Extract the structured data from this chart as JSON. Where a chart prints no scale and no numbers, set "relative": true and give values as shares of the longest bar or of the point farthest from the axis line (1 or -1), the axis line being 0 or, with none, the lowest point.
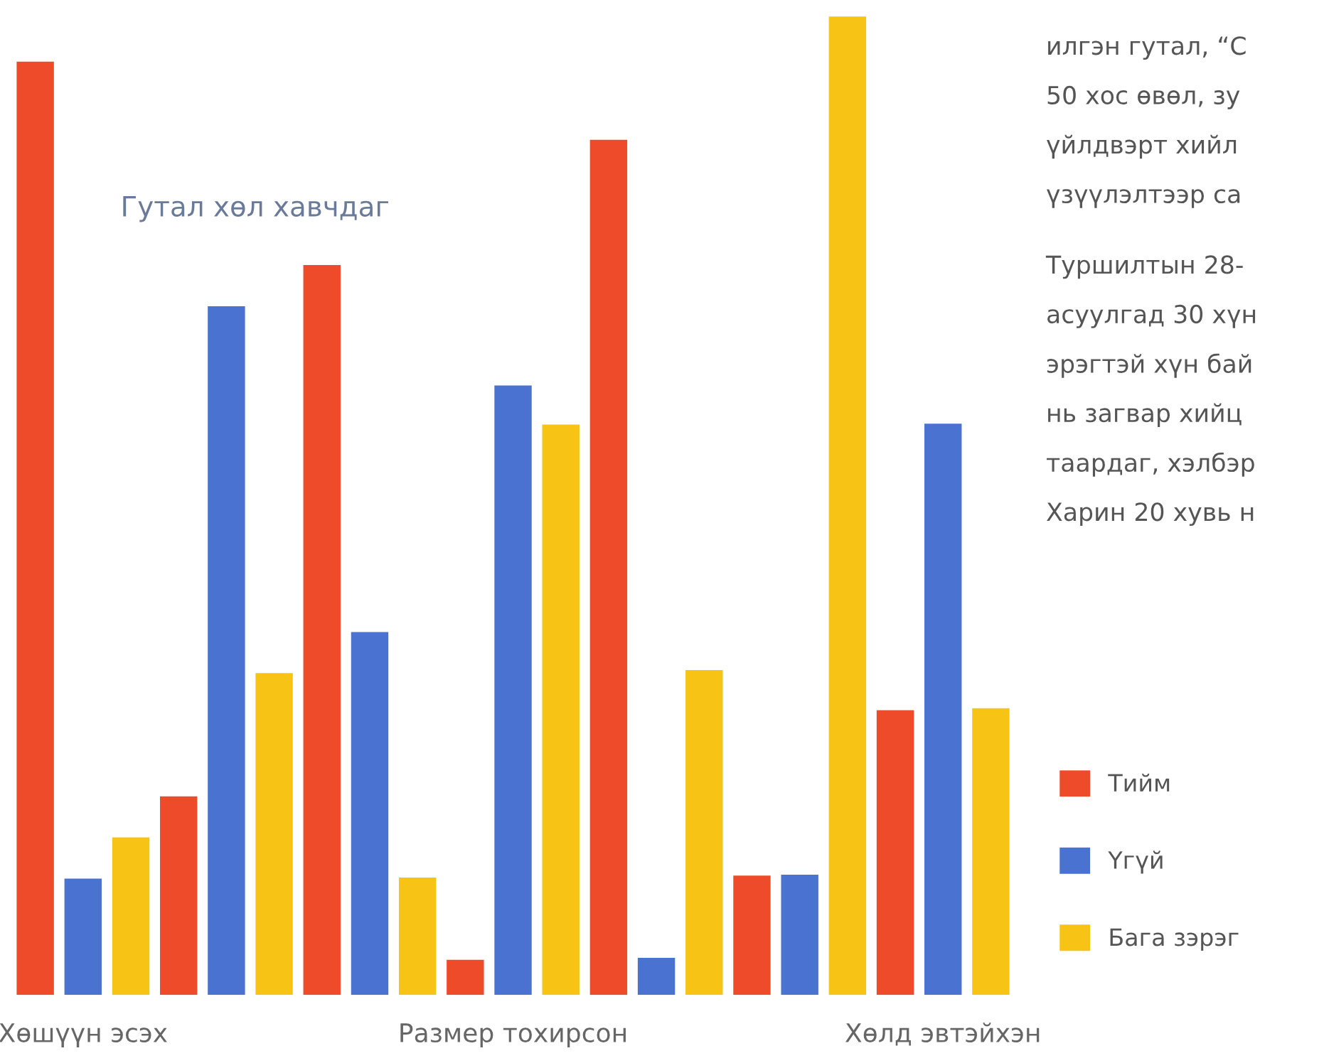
{
  "chart_data": {
    "type": "bar",
    "relative": true,
    "categories": [
      "Хөшүүн эсэх",
      null,
      null,
      "Размер тохирсон",
      null,
      null,
      "Хөлд эвтэйхэн"
    ],
    "series": [
      {
        "name": "Тийм",
        "color": "#ee4b2b",
        "values": [
          0.954,
          0.203,
          0.746,
          0.036,
          0.874,
          0.122,
          0.291
        ]
      },
      {
        "name": "Үгүй",
        "color": "#4a72d0",
        "values": [
          0.119,
          0.704,
          0.371,
          0.623,
          0.038,
          0.123,
          0.584
        ]
      },
      {
        "name": "Бага зэрэг",
        "color": "#f7c416",
        "values": [
          0.161,
          0.329,
          0.12,
          0.583,
          0.332,
          1,
          0.293
        ]
      }
    ],
    "legend": "right",
    "grid": false,
    "annotations": [
      "Гутал хөл хавчдаг",
      "илгэн гутал, “С",
      "50 хос өвөл, зу",
      "үйлдвэрт хийл",
      "үзүүлэлтээр са",
      "Туршилтын 28-",
      "асуулгад 30 хүн",
      "эрэгтэй хүн бай",
      "нь загвар хийц",
      "таардаг, хэлбэр",
      "Харин 20 хувь н"
    ]
  }
}
